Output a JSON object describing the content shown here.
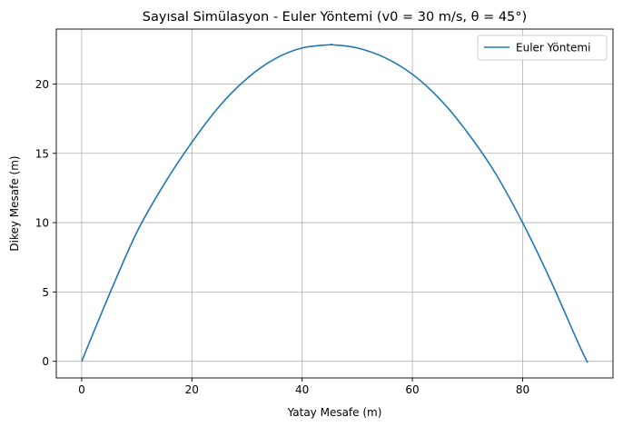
{
  "chart_data": {
    "type": "line",
    "title": "Sayısal Simülasyon - Euler Yöntemi (v0 = 30 m/s, θ = 45°)",
    "xlabel": "Yatay Mesafe (m)",
    "ylabel": "Dikey Mesafe (m)",
    "xlim": [
      -4.6,
      96.4
    ],
    "ylim": [
      -1.2,
      23.96
    ],
    "xticks": [
      0,
      20,
      40,
      60,
      80
    ],
    "yticks": [
      0,
      5,
      10,
      15,
      20
    ],
    "grid": true,
    "legend_position": "top-right",
    "series": [
      {
        "name": "Euler Yöntemi",
        "color": "#1f77b4",
        "x": [
          0,
          5,
          10,
          15,
          20,
          25,
          30,
          35,
          40,
          45,
          45.5,
          50,
          55,
          60,
          65,
          70,
          75,
          80,
          85,
          90,
          91.8
        ],
        "y": [
          0,
          4.8,
          9.3,
          12.8,
          15.8,
          18.4,
          20.4,
          21.8,
          22.6,
          22.83,
          22.83,
          22.6,
          21.9,
          20.7,
          18.9,
          16.5,
          13.6,
          10.0,
          5.9,
          1.4,
          -0.1
        ]
      }
    ]
  }
}
